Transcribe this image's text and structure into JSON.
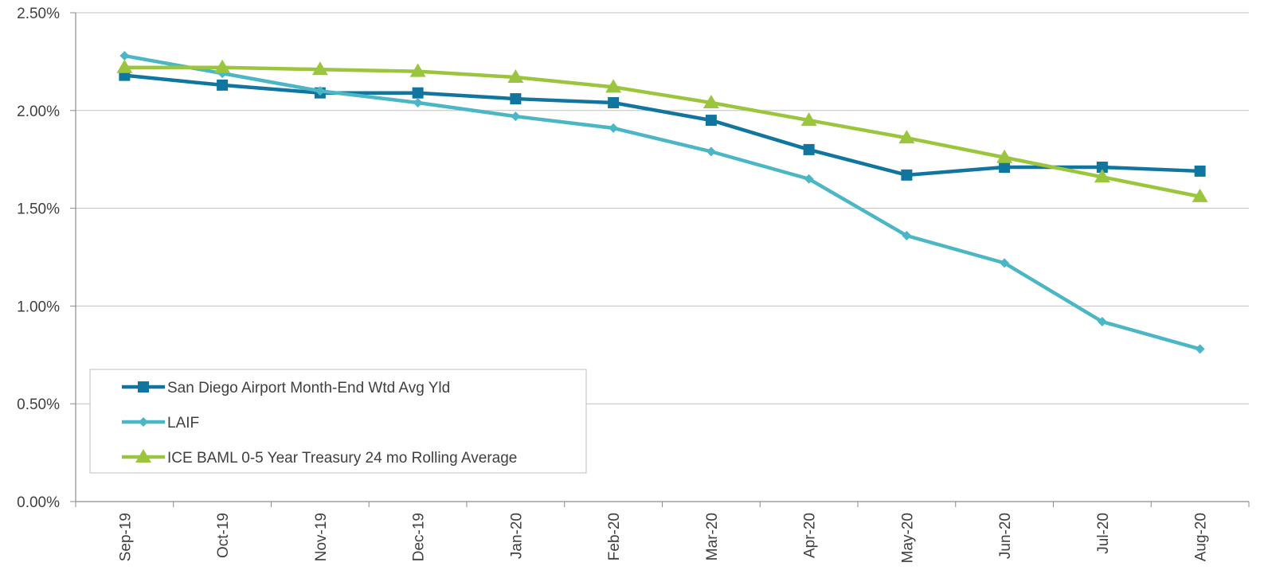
{
  "chart_data": {
    "type": "line",
    "title": "",
    "xlabel": "",
    "ylabel": "",
    "categories": [
      "Sep-19",
      "Oct-19",
      "Nov-19",
      "Dec-19",
      "Jan-20",
      "Feb-20",
      "Mar-20",
      "Apr-20",
      "May-20",
      "Jun-20",
      "Jul-20",
      "Aug-20"
    ],
    "ylim": [
      0,
      2.5
    ],
    "yticks": [
      0,
      0.5,
      1.0,
      1.5,
      2.0,
      2.5
    ],
    "ytick_labels": [
      "0.00%",
      "0.50%",
      "1.00%",
      "1.50%",
      "2.00%",
      "2.50%"
    ],
    "grid": "horizontal",
    "legend_position": "bottom-left inside",
    "series": [
      {
        "name": "San Diego Airport Month-End Wtd Avg Yld",
        "color": "#10769F",
        "marker": "square",
        "values": [
          2.18,
          2.13,
          2.09,
          2.09,
          2.06,
          2.04,
          1.95,
          1.8,
          1.67,
          1.71,
          1.71,
          1.69
        ]
      },
      {
        "name": "LAIF",
        "color": "#4BB6C5",
        "marker": "diamond",
        "values": [
          2.28,
          2.19,
          2.1,
          2.04,
          1.97,
          1.91,
          1.79,
          1.65,
          1.36,
          1.22,
          0.92,
          0.78
        ]
      },
      {
        "name": "ICE BAML 0-5 Year Treasury 24 mo Rolling Average",
        "color": "#9BC53D",
        "marker": "triangle",
        "values": [
          2.22,
          2.22,
          2.21,
          2.2,
          2.17,
          2.12,
          2.04,
          1.95,
          1.86,
          1.76,
          1.66,
          1.56
        ]
      }
    ]
  }
}
